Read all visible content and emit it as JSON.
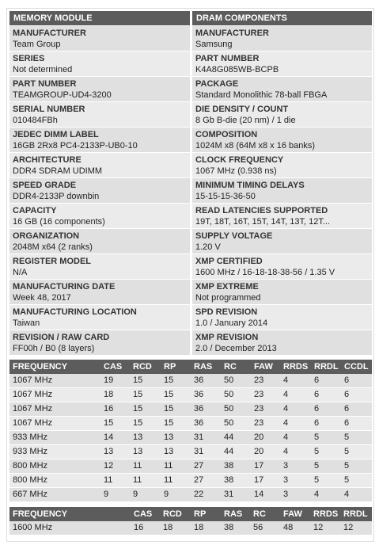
{
  "module": {
    "title": "MEMORY MODULE",
    "fields": [
      {
        "label": "MANUFACTURER",
        "value": "Team Group"
      },
      {
        "label": "SERIES",
        "value": "Not determined"
      },
      {
        "label": "PART NUMBER",
        "value": "TEAMGROUP-UD4-3200"
      },
      {
        "label": "SERIAL NUMBER",
        "value": "010484FBh"
      },
      {
        "label": "JEDEC DIMM LABEL",
        "value": "16GB 2Rx8 PC4-2133P-UB0-10"
      },
      {
        "label": "ARCHITECTURE",
        "value": "DDR4 SDRAM UDIMM"
      },
      {
        "label": "SPEED GRADE",
        "value": "DDR4-2133P downbin"
      },
      {
        "label": "CAPACITY",
        "value": "16 GB (16 components)"
      },
      {
        "label": "ORGANIZATION",
        "value": "2048M x64 (2 ranks)"
      },
      {
        "label": "REGISTER MODEL",
        "value": "N/A"
      },
      {
        "label": "MANUFACTURING DATE",
        "value": "Week 48, 2017"
      },
      {
        "label": "MANUFACTURING LOCATION",
        "value": "Taiwan"
      },
      {
        "label": "REVISION / RAW CARD",
        "value": "FF00h / B0 (8 layers)"
      }
    ]
  },
  "dram": {
    "title": "DRAM COMPONENTS",
    "fields": [
      {
        "label": "MANUFACTURER",
        "value": "Samsung"
      },
      {
        "label": "PART NUMBER",
        "value": "K4A8G085WB-BCPB"
      },
      {
        "label": "PACKAGE",
        "value": "Standard Monolithic 78-ball FBGA"
      },
      {
        "label": "DIE DENSITY / COUNT",
        "value": "8 Gb B-die (20 nm) / 1 die"
      },
      {
        "label": "COMPOSITION",
        "value": "1024M x8 (64M x8 x 16 banks)"
      },
      {
        "label": "CLOCK FREQUENCY",
        "value": "1067 MHz (0.938 ns)"
      },
      {
        "label": "MINIMUM TIMING DELAYS",
        "value": "15-15-15-36-50"
      },
      {
        "label": "READ LATENCIES SUPPORTED",
        "value": "19T, 18T, 16T, 15T, 14T, 13T, 12T..."
      },
      {
        "label": "SUPPLY VOLTAGE",
        "value": "1.20 V"
      },
      {
        "label": "XMP CERTIFIED",
        "value": "1600 MHz / 16-18-18-38-56 / 1.35 V"
      },
      {
        "label": "XMP EXTREME",
        "value": "Not programmed"
      },
      {
        "label": "SPD REVISION",
        "value": "1.0 / January 2014"
      },
      {
        "label": "XMP REVISION",
        "value": "2.0 / December 2013"
      }
    ]
  },
  "timings": {
    "headers": [
      "FREQUENCY",
      "CAS",
      "RCD",
      "RP",
      "RAS",
      "RC",
      "FAW",
      "RRDS",
      "RRDL",
      "CCDL"
    ],
    "rows": [
      [
        "1067 MHz",
        "19",
        "15",
        "15",
        "36",
        "50",
        "23",
        "4",
        "6",
        "6"
      ],
      [
        "1067 MHz",
        "18",
        "15",
        "15",
        "36",
        "50",
        "23",
        "4",
        "6",
        "6"
      ],
      [
        "1067 MHz",
        "16",
        "15",
        "15",
        "36",
        "50",
        "23",
        "4",
        "6",
        "6"
      ],
      [
        "1067 MHz",
        "15",
        "15",
        "15",
        "36",
        "50",
        "23",
        "4",
        "6",
        "6"
      ],
      [
        "933 MHz",
        "14",
        "13",
        "13",
        "31",
        "44",
        "20",
        "4",
        "5",
        "5"
      ],
      [
        "933 MHz",
        "13",
        "13",
        "13",
        "31",
        "44",
        "20",
        "4",
        "5",
        "5"
      ],
      [
        "800 MHz",
        "12",
        "11",
        "11",
        "27",
        "38",
        "17",
        "3",
        "5",
        "5"
      ],
      [
        "800 MHz",
        "11",
        "11",
        "11",
        "27",
        "38",
        "17",
        "3",
        "5",
        "5"
      ],
      [
        "667 MHz",
        "9",
        "9",
        "9",
        "22",
        "31",
        "14",
        "3",
        "4",
        "4"
      ]
    ]
  },
  "xmp": {
    "headers": [
      "FREQUENCY",
      "CAS",
      "RCD",
      "RP",
      "RAS",
      "RC",
      "FAW",
      "RRDS",
      "RRDL"
    ],
    "rows": [
      [
        "1600 MHz",
        "16",
        "18",
        "18",
        "38",
        "56",
        "48",
        "12",
        "12"
      ]
    ]
  }
}
